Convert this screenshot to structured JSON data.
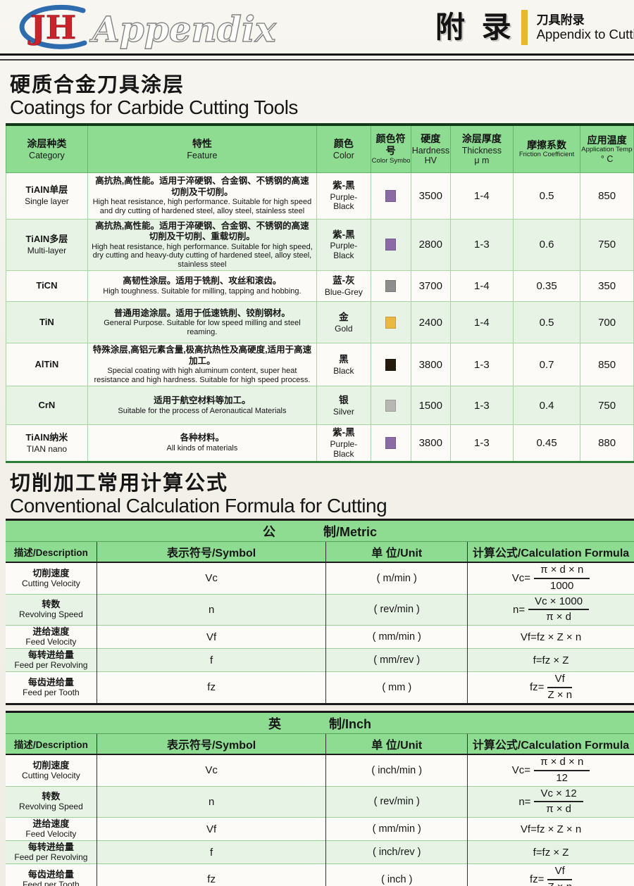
{
  "header": {
    "logo_jh": "JH",
    "logo_appendix": "Appendix",
    "title_cn": "附 录",
    "sub_cn": "刀具附录",
    "sub_en": "Appendix to Cutting Too",
    "accent_color": "#e6b92d"
  },
  "colors": {
    "table_header_green": "#8edc92",
    "row_alt_green": "#e7f3e5",
    "logo_red": "#c9242c",
    "logo_blue": "#2e6cae",
    "accent_yellow": "#e6b92d"
  },
  "coatings": {
    "title_cn": "硬质合金刀具涂层",
    "title_en": "Coatings for Carbide Cutting Tools",
    "headers": [
      {
        "cn": "涂层种类",
        "en": [
          "Category"
        ]
      },
      {
        "cn": "特性",
        "en": [
          "Feature"
        ]
      },
      {
        "cn": "颜色",
        "en": [
          "Color"
        ]
      },
      {
        "cn": "颜色符号",
        "en": [
          "Color Symbol"
        ]
      },
      {
        "cn": "硬度",
        "en": [
          "Hardness",
          "HV"
        ]
      },
      {
        "cn": "涂层厚度",
        "en": [
          "Thickness",
          "μ m"
        ]
      },
      {
        "cn": "摩擦系数",
        "en": [
          "Friction Coefficient"
        ]
      },
      {
        "cn": "应用温度",
        "en": [
          "Application Temperatur",
          "° C"
        ]
      }
    ],
    "rows": [
      {
        "category_cn": "TiAlN单层",
        "category_en": "Single layer",
        "feature_cn": "高抗热,高性能。适用于淬硬钢、合金钢、不锈钢的高速切削及干切削。",
        "feature_en": "High heat resistance, high performance. Suitable for high speed and dry cutting of hardened steel, alloy steel, stainless steel",
        "color_cn": "紫-黑",
        "color_en": "Purple-Black",
        "symbol_color": "#8a6ba6",
        "hardness": "3500",
        "thickness": "1-4",
        "friction": "0.5",
        "app_temp": "850"
      },
      {
        "category_cn": "TiAlN多层",
        "category_en": "Multi-layer",
        "feature_cn": "高抗热,高性能。适用于淬硬钢、合金钢、不锈钢的高速切削及干切削、重载切削。",
        "feature_en": "High heat resistance, high performance. Suitable for high speed, dry cutting and heavy-duty cutting of hardened steel, alloy steel, stainless steel",
        "color_cn": "紫-黑",
        "color_en": "Purple-Black",
        "symbol_color": "#8a6ba6",
        "hardness": "2800",
        "thickness": "1-3",
        "friction": "0.6",
        "app_temp": "750"
      },
      {
        "category_cn": "TiCN",
        "category_en": "",
        "feature_cn": "高韧性涂层。适用于铣削、攻丝和滚齿。",
        "feature_en": "High toughness.  Suitable for milling, tapping and hobbing.",
        "color_cn": "蓝-灰",
        "color_en": "Blue-Grey",
        "symbol_color": "#8d8d8d",
        "hardness": "3700",
        "thickness": "1-4",
        "friction": "0.35",
        "app_temp": "350"
      },
      {
        "category_cn": "TiN",
        "category_en": "",
        "feature_cn": "普通用途涂层。适用于低速铣削、铰削钢材。",
        "feature_en": "General Purpose. Suitable for low speed milling and steel reaming.",
        "color_cn": "金",
        "color_en": "Gold",
        "symbol_color": "#ecb844",
        "hardness": "2400",
        "thickness": "1-4",
        "friction": "0.5",
        "app_temp": "700"
      },
      {
        "category_cn": "AlTiN",
        "category_en": "",
        "feature_cn": "特殊涂层,高铝元素含量,极高抗热性及高硬度,适用于高速加工。",
        "feature_en": "Special coating with high aluminum content, super heat resistance and high hardness. Suitable for high speed process.",
        "color_cn": "黑",
        "color_en": "Black",
        "symbol_color": "#241b0e",
        "hardness": "3800",
        "thickness": "1-3",
        "friction": "0.7",
        "app_temp": "850"
      },
      {
        "category_cn": "CrN",
        "category_en": "",
        "feature_cn": "适用于航空材料等加工。",
        "feature_en": "Suitable for the process of Aeronautical Materials",
        "color_cn": "银",
        "color_en": "Silver",
        "symbol_color": "#b7b7b4",
        "hardness": "1500",
        "thickness": "1-3",
        "friction": "0.4",
        "app_temp": "750"
      },
      {
        "category_cn": "TiAlN纳米",
        "category_en": "TIAN nano",
        "feature_cn": "各种材料。",
        "feature_en": "All kinds of materials",
        "color_cn": "紫-黑",
        "color_en": "Purple-Black",
        "symbol_color": "#8a6ba6",
        "hardness": "3800",
        "thickness": "1-3",
        "friction": "0.45",
        "app_temp": "880"
      }
    ]
  },
  "formulas": {
    "title_cn": "切削加工常用计算公式",
    "title_en": "Conventional Calculation Formula for Cutting",
    "col_headers": [
      "描述/Description",
      "表示符号/Symbol",
      "单 位/Unit",
      "计算公式/Calculation Formula"
    ],
    "tables": [
      {
        "title_left": "公",
        "title_right": "制/Metric",
        "rows": [
          {
            "desc_cn": "切削速度",
            "desc_en": "Cutting Velocity",
            "symbol": "Vc",
            "unit": "( m/min )",
            "formula": {
              "lhs": "Vc=",
              "num": "π × d × n",
              "den": "1000"
            }
          },
          {
            "desc_cn": "转数",
            "desc_en": "Revolving Speed",
            "symbol": "n",
            "unit": "( rev/min )",
            "formula": {
              "lhs": "n=",
              "num": "Vc × 1000",
              "den": "π × d"
            }
          },
          {
            "desc_cn": "进给速度",
            "desc_en": "Feed Velocity",
            "symbol": "Vf",
            "unit": "( mm/min )",
            "formula": {
              "text": "Vf=fz × Z × n"
            }
          },
          {
            "desc_cn": "每转进给量",
            "desc_en": "Feed per Revolving",
            "symbol": "f",
            "unit": "( mm/rev )",
            "formula": {
              "text": "f=fz × Z"
            }
          },
          {
            "desc_cn": "每齿进给量",
            "desc_en": "Feed per Tooth",
            "symbol": "fz",
            "unit": "( mm )",
            "formula": {
              "lhs": "fz=",
              "num": "Vf",
              "den": "Z × n"
            }
          }
        ]
      },
      {
        "title_left": "英",
        "title_right": "制/Inch",
        "rows": [
          {
            "desc_cn": "切削速度",
            "desc_en": "Cutting Velocity",
            "symbol": "Vc",
            "unit": "( inch/min )",
            "formula": {
              "lhs": "Vc=",
              "num": "π × d × n",
              "den": "12"
            }
          },
          {
            "desc_cn": "转数",
            "desc_en": "Revolving Speed",
            "symbol": "n",
            "unit": "( rev/min )",
            "formula": {
              "lhs": "n=",
              "num": "Vc × 12",
              "den": "π × d"
            }
          },
          {
            "desc_cn": "进给速度",
            "desc_en": "Feed Velocity",
            "symbol": "Vf",
            "unit": "( mm/min )",
            "formula": {
              "text": "Vf=fz × Z × n"
            }
          },
          {
            "desc_cn": "每转进给量",
            "desc_en": "Feed per Revolving",
            "symbol": "f",
            "unit": "( inch/rev )",
            "formula": {
              "text": "f=fz × Z"
            }
          },
          {
            "desc_cn": "每齿进给量",
            "desc_en": "Feed per Tooth",
            "symbol": "fz",
            "unit": "( inch )",
            "formula": {
              "lhs": "fz=",
              "num": "Vf",
              "den": "Z × n"
            }
          }
        ]
      }
    ]
  }
}
